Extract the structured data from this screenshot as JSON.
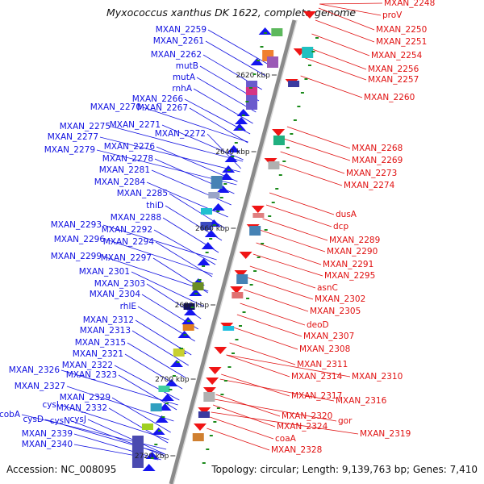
{
  "title": "Myxococcus xanthus DK 1622, complete genome",
  "footer": {
    "accession": "Accession: NC_008095",
    "topology": "Topology: circular; Length: 9,139,763 bp; Genes: 7,410"
  },
  "colors": {
    "left_label": "#1010e0",
    "right_label": "#e01010",
    "backbone": "#8a8a8a",
    "tick": "#1a8a1a",
    "fwd_arrow": "#1515f0",
    "rev_arrow": "#f01515"
  },
  "scale_ticks": [
    "2620 kbp",
    "2640 kbp",
    "2660 kbp",
    "2680 kbp",
    "2700 kbp",
    "2720 kbp"
  ],
  "left_labels": [
    "MXAN_2259",
    "MXAN_2261",
    "MXAN_2262",
    "mutB",
    "mutA",
    "rnhA",
    "MXAN_2266",
    "MXAN_2270",
    "MXAN_2267",
    "MXAN_2271",
    "MXAN_2275",
    "MXAN_2272",
    "MXAN_2277",
    "MXAN_2276",
    "MXAN_2279",
    "MXAN_2278",
    "MXAN_2281",
    "MXAN_2284",
    "MXAN_2285",
    "thiD",
    "MXAN_2288",
    "MXAN_2293",
    "MXAN_2292",
    "MXAN_2296",
    "MXAN_2294",
    "MXAN_2299",
    "MXAN_2297",
    "MXAN_2301",
    "MXAN_2303",
    "MXAN_2304",
    "rhlE",
    "MXAN_2312",
    "MXAN_2313",
    "MXAN_2315",
    "MXAN_2321",
    "MXAN_2322",
    "MXAN_2326",
    "MXAN_2323",
    "MXAN_2327",
    "MXAN_2329",
    "cysI",
    "MXAN_2332",
    "cobA",
    "cysD",
    "cysN",
    "cysJ",
    "MXAN_2339",
    "MXAN_2340"
  ],
  "right_labels": [
    "MXAN_2248",
    "proV",
    "MXAN_2250",
    "MXAN_2251",
    "MXAN_2254",
    "MXAN_2256",
    "MXAN_2257",
    "MXAN_2260",
    "MXAN_2268",
    "MXAN_2269",
    "MXAN_2273",
    "MXAN_2274",
    "dusA",
    "dcp",
    "MXAN_2289",
    "MXAN_2290",
    "MXAN_2291",
    "MXAN_2295",
    "asnC",
    "MXAN_2302",
    "MXAN_2305",
    "deoD",
    "MXAN_2307",
    "MXAN_2308",
    "MXAN_2311",
    "MXAN_2314",
    "MXAN_2310",
    "MXAN_2317",
    "MXAN_2316",
    "MXAN_2320",
    "gor",
    "MXAN_2324",
    "MXAN_2319",
    "coaA",
    "MXAN_2328"
  ]
}
